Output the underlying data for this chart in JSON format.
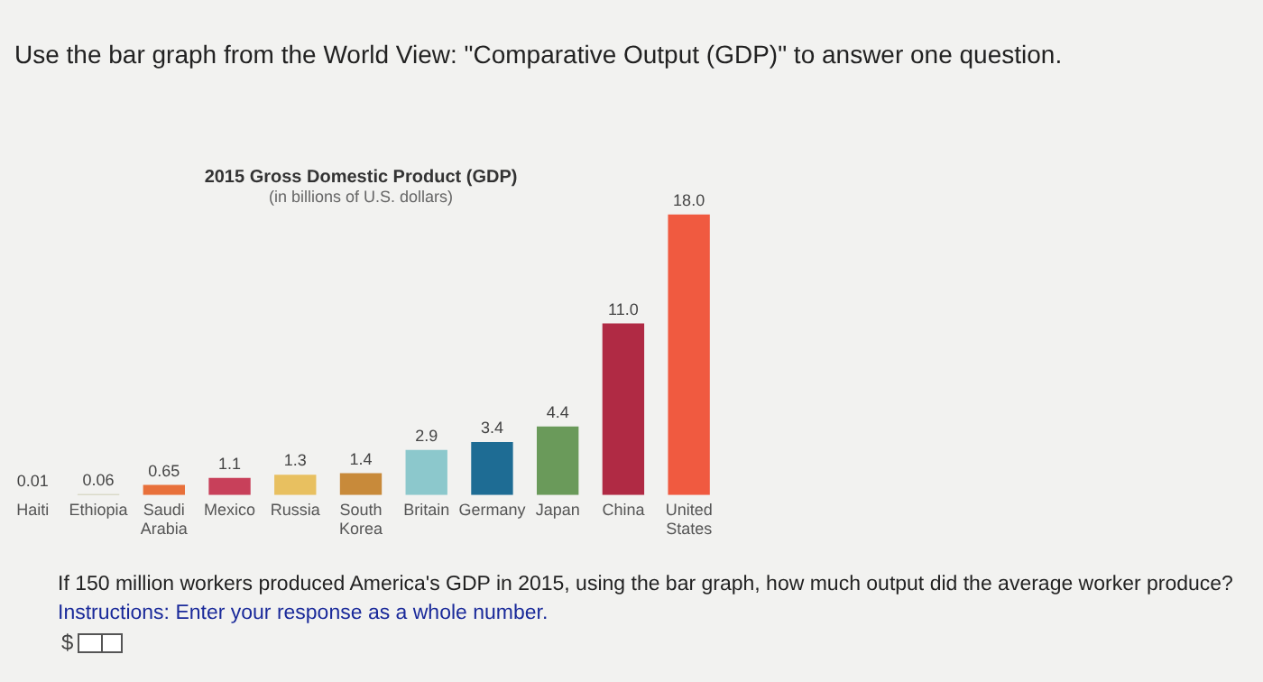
{
  "chart_data": {
    "type": "bar",
    "title": "2015 Gross Domestic Product (GDP)",
    "subtitle": "(in billions of U.S. dollars)",
    "categories": [
      "Haiti",
      "Ethiopia",
      "Saudi Arabia",
      "Mexico",
      "Russia",
      "South Korea",
      "Britain",
      "Germany",
      "Japan",
      "China",
      "United States"
    ],
    "values": [
      0.01,
      0.06,
      0.65,
      1.1,
      1.3,
      1.4,
      2.9,
      3.4,
      4.4,
      11.0,
      18.0
    ],
    "value_labels": [
      "0.01",
      "0.06",
      "0.65",
      "1.1",
      "1.3",
      "1.4",
      "2.9",
      "3.4",
      "4.4",
      "11.0",
      "18.0"
    ],
    "colors": [
      "#b8b8b0",
      "#c8c8a8",
      "#e8703a",
      "#c8405a",
      "#e8c060",
      "#c88a3a",
      "#8cc8cc",
      "#1e6c94",
      "#6a9a5a",
      "#b02a44",
      "#f05a40"
    ],
    "tick_labels": "x",
    "grid": false,
    "legend": false,
    "annotations": [
      "Use the bar graph from the World View: \"Comparative Output (GDP)\" to answer one question.",
      "If 150 million workers produced America's GDP in 2015, using the bar graph, how much output did the average worker produce?",
      "Instructions: Enter your response as a whole number.",
      "$"
    ]
  }
}
